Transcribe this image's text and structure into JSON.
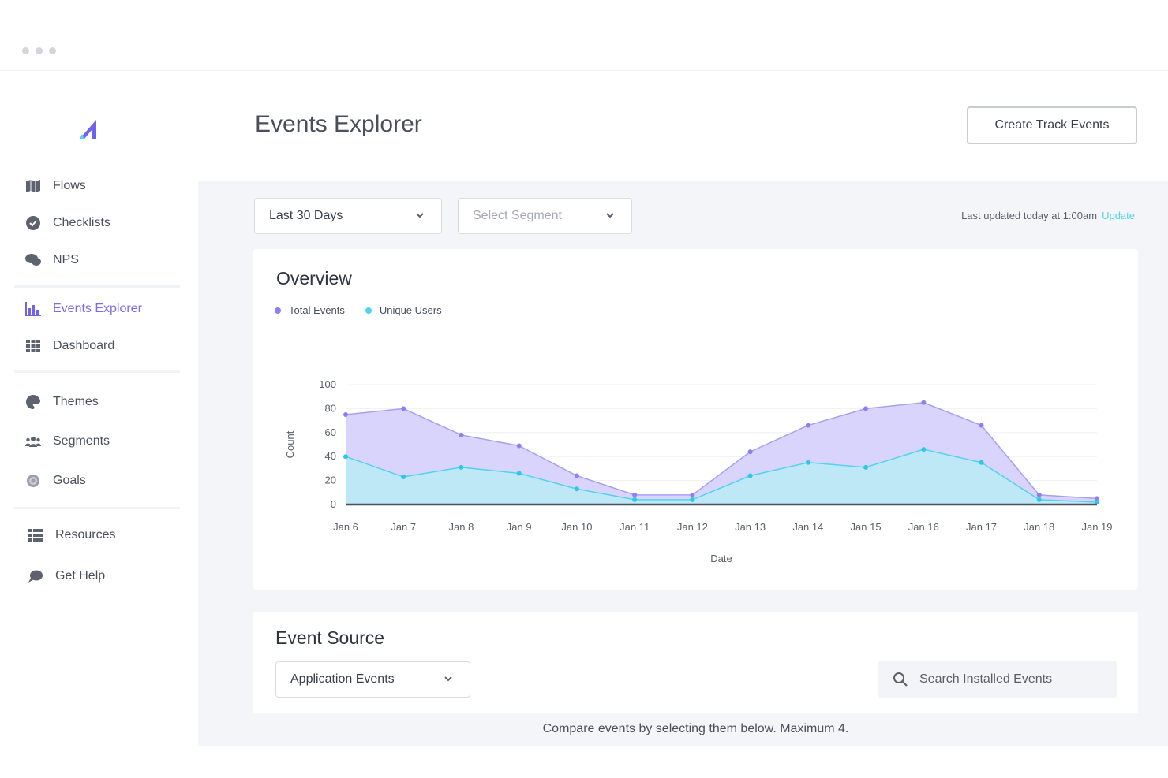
{
  "sidebar": {
    "groups": [
      [
        {
          "label": "Flows",
          "icon": "map-icon"
        },
        {
          "label": "Checklists",
          "icon": "check-circle-icon"
        },
        {
          "label": "NPS",
          "icon": "chat-bubbles-icon"
        }
      ],
      [
        {
          "label": "Events Explorer",
          "icon": "bar-chart-icon",
          "active": true
        },
        {
          "label": "Dashboard",
          "icon": "grid-icon"
        }
      ],
      [
        {
          "label": "Themes",
          "icon": "palette-icon"
        },
        {
          "label": "Segments",
          "icon": "users-icon"
        },
        {
          "label": "Goals",
          "icon": "target-icon"
        }
      ],
      [
        {
          "label": "Resources",
          "icon": "list-icon"
        },
        {
          "label": "Get Help",
          "icon": "speech-bubble-icon"
        }
      ]
    ]
  },
  "header": {
    "title": "Events Explorer",
    "create_label": "Create Track Events"
  },
  "filters": {
    "date_range": "Last 30 Days",
    "segment_placeholder": "Select Segment",
    "updated_text": "Last updated today at 1:00am",
    "update_link": "Update"
  },
  "overview": {
    "title": "Overview"
  },
  "colors": {
    "accent": "#6f63ea",
    "total_events": "#8a80f0",
    "unique_users": "#4fd3f0",
    "link": "#4fd3f0"
  },
  "chart_data": {
    "type": "area",
    "title": "",
    "xlabel": "Date",
    "ylabel": "Count",
    "ylim": [
      0,
      100
    ],
    "yticks": [
      0,
      20,
      40,
      60,
      80,
      100
    ],
    "grid": true,
    "legend": "top-left",
    "categories": [
      "Jan 6",
      "Jan 7",
      "Jan 8",
      "Jan 9",
      "Jan 10",
      "Jan 11",
      "Jan 12",
      "Jan 13",
      "Jan 14",
      "Jan 15",
      "Jan 16",
      "Jan 17",
      "Jan 18",
      "Jan 19"
    ],
    "series": [
      {
        "name": "Total Events",
        "color": "#8a80f0",
        "values": [
          75,
          80,
          58,
          49,
          24,
          8,
          8,
          44,
          66,
          80,
          85,
          66,
          8,
          5
        ]
      },
      {
        "name": "Unique Users",
        "color": "#4fd3f0",
        "values": [
          40,
          23,
          31,
          26,
          13,
          4,
          4,
          24,
          35,
          31,
          46,
          35,
          4,
          2
        ]
      }
    ]
  },
  "event_source": {
    "title": "Event Source",
    "source_value": "Application Events",
    "search_placeholder": "Search Installed Events",
    "compare_text": "Compare events by selecting them below. Maximum 4."
  }
}
